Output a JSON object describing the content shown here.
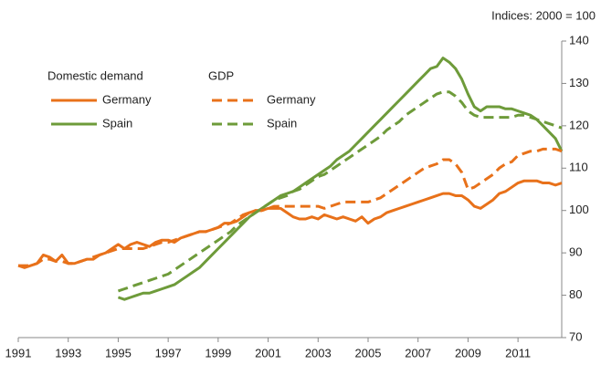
{
  "chart_data": {
    "type": "line",
    "annotation": "Indices: 2000 = 100",
    "legend_titles": [
      "Domestic demand",
      "GDP"
    ],
    "x": [
      1991,
      1991.25,
      1991.5,
      1991.75,
      1992,
      1992.25,
      1992.5,
      1992.75,
      1993,
      1993.25,
      1993.5,
      1993.75,
      1994,
      1994.25,
      1994.5,
      1994.75,
      1995,
      1995.25,
      1995.5,
      1995.75,
      1996,
      1996.25,
      1996.5,
      1996.75,
      1997,
      1997.25,
      1997.5,
      1997.75,
      1998,
      1998.25,
      1998.5,
      1998.75,
      1999,
      1999.25,
      1999.5,
      1999.75,
      2000,
      2000.25,
      2000.5,
      2000.75,
      2001,
      2001.25,
      2001.5,
      2001.75,
      2002,
      2002.25,
      2002.5,
      2002.75,
      2003,
      2003.25,
      2003.5,
      2003.75,
      2004,
      2004.25,
      2004.5,
      2004.75,
      2005,
      2005.25,
      2005.5,
      2005.75,
      2006,
      2006.25,
      2006.5,
      2006.75,
      2007,
      2007.25,
      2007.5,
      2007.75,
      2008,
      2008.25,
      2008.5,
      2008.75,
      2009,
      2009.25,
      2009.5,
      2009.75,
      2010,
      2010.25,
      2010.5,
      2010.75,
      2011,
      2011.25,
      2011.5,
      2011.75,
      2012,
      2012.25,
      2012.5,
      2012.75
    ],
    "series": [
      {
        "name": "Germany",
        "group": 0,
        "dashed": false,
        "color": "#e8711a",
        "values": [
          87,
          86.5,
          87,
          87.5,
          89.5,
          89,
          88,
          89.5,
          87.5,
          87.5,
          88,
          88.5,
          88.5,
          89.5,
          90,
          91,
          92,
          91,
          92,
          92.5,
          92,
          91.5,
          92.5,
          93,
          93,
          92.5,
          93.5,
          94,
          94.5,
          95,
          95,
          95.5,
          96,
          97,
          97,
          97.5,
          98.5,
          99.5,
          100,
          100,
          100.5,
          100.5,
          100.5,
          99.5,
          98.5,
          98,
          98,
          98.5,
          98,
          99,
          98.5,
          98,
          98.5,
          98,
          97.5,
          98.5,
          97,
          98,
          98.5,
          99.5,
          100,
          100.5,
          101,
          101.5,
          102,
          102.5,
          103,
          103.5,
          104,
          104,
          103.5,
          103.5,
          102.5,
          101,
          100.5,
          101.5,
          102.5,
          104,
          104.5,
          105.5,
          106.5,
          107,
          107,
          107,
          106.5,
          106.5,
          106,
          106.5
        ]
      },
      {
        "name": "Spain",
        "group": 0,
        "dashed": false,
        "color": "#6e9b3a",
        "values": [
          null,
          null,
          null,
          null,
          null,
          null,
          null,
          null,
          null,
          null,
          null,
          null,
          null,
          null,
          null,
          null,
          79.5,
          79,
          79.5,
          80,
          80.5,
          80.5,
          81,
          81.5,
          82,
          82.5,
          83.5,
          84.5,
          85.5,
          86.5,
          88,
          89.5,
          91,
          92.5,
          94,
          95.5,
          97,
          98.5,
          99.5,
          100.5,
          101.5,
          102.5,
          103.5,
          104,
          104.5,
          105.5,
          106.5,
          107.5,
          108.5,
          109.5,
          110.5,
          112,
          113,
          114,
          115.5,
          117,
          118.5,
          120,
          121.5,
          123,
          124.5,
          126,
          127.5,
          129,
          130.5,
          132,
          133.5,
          134,
          136,
          135,
          133.5,
          131,
          127.5,
          124.5,
          123.5,
          124.5,
          124.5,
          124.5,
          124,
          124,
          123.5,
          123,
          122.5,
          121.5,
          120,
          118.5,
          117,
          114
        ]
      },
      {
        "name": "Germany",
        "group": 1,
        "dashed": true,
        "color": "#e8711a",
        "values": [
          87,
          87,
          87,
          87.5,
          88.5,
          88.5,
          88,
          88,
          87.5,
          87.5,
          88,
          88.5,
          89,
          89.5,
          90,
          90.5,
          91,
          91,
          91,
          91,
          91,
          91.5,
          92,
          92.5,
          92.5,
          93,
          93.5,
          94,
          94.5,
          95,
          95,
          95.5,
          96,
          96.5,
          97,
          98,
          99,
          99.5,
          100,
          100,
          100.5,
          101,
          101,
          101,
          101,
          101,
          101,
          101,
          101,
          100.5,
          101,
          101.5,
          102,
          102,
          102,
          102,
          102,
          102.5,
          103,
          104,
          105,
          106,
          107,
          108,
          109,
          110,
          110.5,
          111,
          112,
          112,
          111,
          109,
          105,
          105.5,
          106.5,
          107.5,
          108.5,
          110,
          111,
          111.5,
          113,
          113.5,
          114,
          114,
          114.5,
          114.5,
          114.5,
          114
        ]
      },
      {
        "name": "Spain",
        "group": 1,
        "dashed": true,
        "color": "#6e9b3a",
        "values": [
          null,
          null,
          null,
          null,
          null,
          null,
          null,
          null,
          null,
          null,
          null,
          null,
          null,
          null,
          null,
          null,
          81,
          81.5,
          82,
          82.5,
          83,
          83.5,
          84,
          84.5,
          85,
          86,
          87,
          88,
          89,
          90,
          91,
          92,
          93,
          94,
          95,
          96.5,
          97.5,
          98.5,
          99.5,
          100.5,
          101.5,
          102.5,
          103,
          103.5,
          104.5,
          105,
          106,
          107,
          108,
          108.5,
          109.5,
          110.5,
          111.5,
          112.5,
          113.5,
          114.5,
          115.5,
          116.5,
          117.5,
          119,
          120,
          121,
          122.5,
          123.5,
          124.5,
          125.5,
          126.5,
          127.5,
          128,
          128,
          127,
          125.5,
          123.5,
          122.5,
          122,
          122,
          122,
          122,
          122,
          122,
          122.5,
          122.5,
          122,
          121.5,
          121,
          120.5,
          120,
          119.5
        ]
      }
    ],
    "xlim": [
      1991,
      2012.75
    ],
    "xticks": [
      1991,
      1993,
      1995,
      1997,
      1999,
      2001,
      2003,
      2005,
      2007,
      2009,
      2011
    ],
    "ylim": [
      70,
      140
    ],
    "yticks": [
      70,
      80,
      90,
      100,
      110,
      120,
      130,
      140
    ],
    "y_axis_side": "right"
  }
}
